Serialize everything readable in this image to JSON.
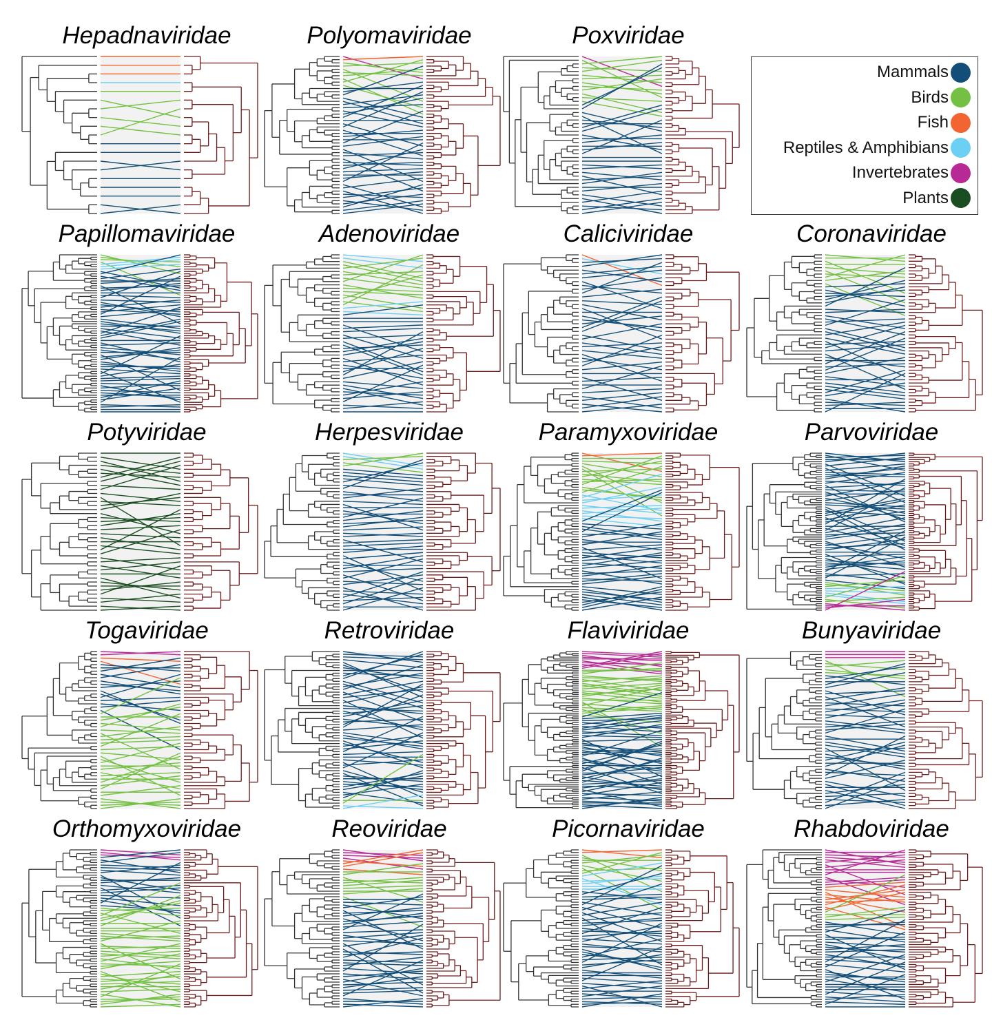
{
  "legend": {
    "items": [
      {
        "key": "mammals",
        "label": "Mammals",
        "color": "#124e78"
      },
      {
        "key": "birds",
        "label": "Birds",
        "color": "#74c043"
      },
      {
        "key": "fish",
        "label": "Fish",
        "color": "#f26430"
      },
      {
        "key": "reptiles",
        "label": "Reptiles & Amphibians",
        "color": "#6cd0f5"
      },
      {
        "key": "invertebrates",
        "label": "Invertebrates",
        "color": "#b72a95"
      },
      {
        "key": "plants",
        "label": "Plants",
        "color": "#1b4d22"
      }
    ]
  },
  "tree_colors": {
    "host_tree": "#333333",
    "virus_tree": "#6b1a1a"
  },
  "panels": [
    {
      "title": "Hepadnaviridae",
      "hosts": [
        [
          "fish",
          3
        ],
        [
          "reptiles",
          1
        ],
        [
          "birds",
          6
        ],
        [
          "mammals",
          9
        ]
      ]
    },
    {
      "title": "Polyomaviridae",
      "hosts": [
        [
          "invertebrates",
          1
        ],
        [
          "fish",
          1
        ],
        [
          "birds",
          8
        ],
        [
          "mammals",
          40
        ]
      ]
    },
    {
      "title": "Poxviridae",
      "hosts": [
        [
          "invertebrates",
          1
        ],
        [
          "birds",
          12
        ],
        [
          "mammals",
          30
        ]
      ]
    },
    {
      "title": "Papillomaviridae",
      "hosts": [
        [
          "birds",
          4
        ],
        [
          "reptiles",
          3
        ],
        [
          "mammals",
          60
        ]
      ]
    },
    {
      "title": "Adenoviridae",
      "hosts": [
        [
          "reptiles",
          2
        ],
        [
          "birds",
          14
        ],
        [
          "reptiles",
          2
        ],
        [
          "mammals",
          30
        ]
      ]
    },
    {
      "title": "Caliciviridae",
      "hosts": [
        [
          "fish",
          1
        ],
        [
          "reptiles",
          1
        ],
        [
          "mammals",
          40
        ]
      ]
    },
    {
      "title": "Coronaviridae",
      "hosts": [
        [
          "birds",
          10
        ],
        [
          "mammals",
          40
        ]
      ]
    },
    {
      "title": "Potyviridae",
      "hosts": [
        [
          "plants",
          40
        ]
      ]
    },
    {
      "title": "Herpesviridae",
      "hosts": [
        [
          "reptiles",
          2
        ],
        [
          "birds",
          3
        ],
        [
          "mammals",
          45
        ]
      ]
    },
    {
      "title": "Paramyxoviridae",
      "hosts": [
        [
          "fish",
          2
        ],
        [
          "birds",
          14
        ],
        [
          "reptiles",
          10
        ],
        [
          "mammals",
          35
        ]
      ]
    },
    {
      "title": "Parvoviridae",
      "hosts": [
        [
          "mammals",
          60
        ],
        [
          "birds",
          3
        ],
        [
          "reptiles",
          4
        ],
        [
          "birds",
          3
        ],
        [
          "invertebrates",
          4
        ]
      ]
    },
    {
      "title": "Togaviridae",
      "hosts": [
        [
          "invertebrates",
          2
        ],
        [
          "fish",
          2
        ],
        [
          "mammals",
          15
        ],
        [
          "birds",
          30
        ]
      ]
    },
    {
      "title": "Retroviridae",
      "hosts": [
        [
          "mammals",
          55
        ],
        [
          "birds",
          2
        ],
        [
          "reptiles",
          2
        ]
      ]
    },
    {
      "title": "Flaviviridae",
      "hosts": [
        [
          "invertebrates",
          10
        ],
        [
          "birds",
          25
        ],
        [
          "mammals",
          50
        ]
      ]
    },
    {
      "title": "Bunyaviridae",
      "hosts": [
        [
          "invertebrates",
          3
        ],
        [
          "birds",
          5
        ],
        [
          "mammals",
          45
        ]
      ]
    },
    {
      "title": "Orthomyxoviridae",
      "hosts": [
        [
          "invertebrates",
          3
        ],
        [
          "mammals",
          20
        ],
        [
          "birds",
          40
        ]
      ]
    },
    {
      "title": "Reoviridae",
      "hosts": [
        [
          "invertebrates",
          4
        ],
        [
          "fish",
          4
        ],
        [
          "birds",
          10
        ],
        [
          "mammals",
          40
        ]
      ]
    },
    {
      "title": "Picornaviridae",
      "hosts": [
        [
          "fish",
          2
        ],
        [
          "birds",
          8
        ],
        [
          "reptiles",
          6
        ],
        [
          "mammals",
          45
        ]
      ]
    },
    {
      "title": "Rhabdoviridae",
      "hosts": [
        [
          "invertebrates",
          15
        ],
        [
          "fish",
          10
        ],
        [
          "birds",
          4
        ],
        [
          "mammals",
          35
        ]
      ]
    }
  ]
}
